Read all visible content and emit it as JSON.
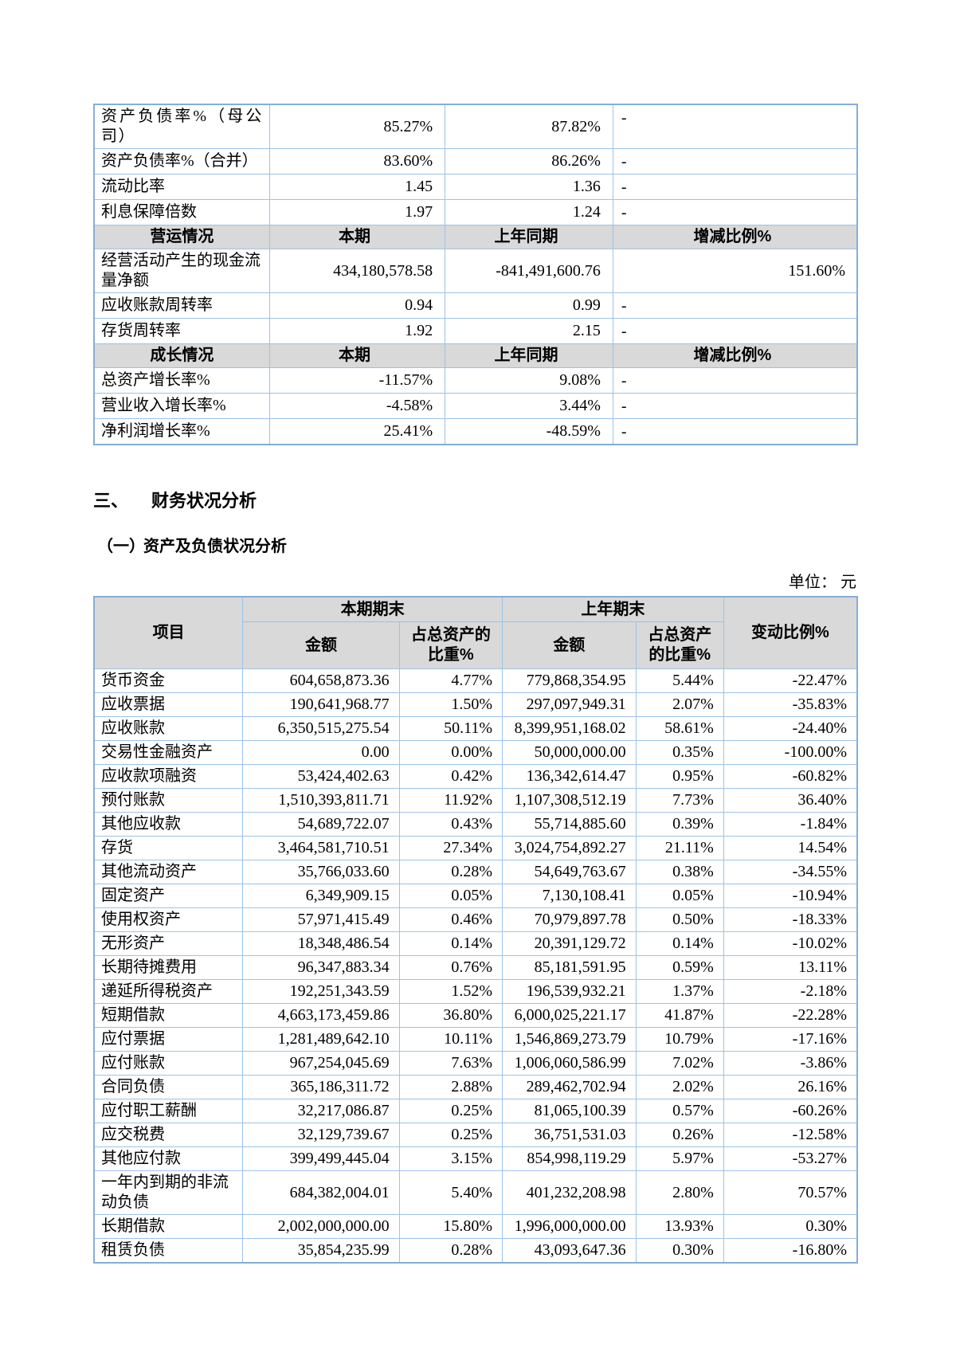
{
  "headings": {
    "section_number": "三、",
    "section_title": "财务状况分析",
    "subsection_number": "（一）",
    "subsection_title": "资产及负债状况分析",
    "unit_label": "单位： 元"
  },
  "ratio_table": {
    "rows": [
      {
        "kind": "data",
        "label": "资产负债率%（母公司）",
        "current": "85.27%",
        "prior": "87.82%",
        "change": "-",
        "tall": true,
        "justify": true
      },
      {
        "kind": "data",
        "label": "资产负债率%（合并）",
        "current": "83.60%",
        "prior": "86.26%",
        "change": "-"
      },
      {
        "kind": "data",
        "label": "流动比率",
        "current": "1.45",
        "prior": "1.36",
        "change": "-"
      },
      {
        "kind": "data",
        "label": "利息保障倍数",
        "current": "1.97",
        "prior": "1.24",
        "change": "-"
      },
      {
        "kind": "header",
        "label": "营运情况",
        "current": "本期",
        "prior": "上年同期",
        "change": "增减比例%"
      },
      {
        "kind": "data",
        "label": "经营活动产生的现金流量净额",
        "current": "434,180,578.58",
        "prior": "-841,491,600.76",
        "change": "151.60%",
        "tall": true
      },
      {
        "kind": "data",
        "label": "应收账款周转率",
        "current": "0.94",
        "prior": "0.99",
        "change": "-"
      },
      {
        "kind": "data",
        "label": "存货周转率",
        "current": "1.92",
        "prior": "2.15",
        "change": "-"
      },
      {
        "kind": "header",
        "label": "成长情况",
        "current": "本期",
        "prior": "上年同期",
        "change": "增减比例%"
      },
      {
        "kind": "data",
        "label": "总资产增长率%",
        "current": "-11.57%",
        "prior": "9.08%",
        "change": "-"
      },
      {
        "kind": "data",
        "label": "营业收入增长率%",
        "current": "-4.58%",
        "prior": "3.44%",
        "change": "-"
      },
      {
        "kind": "data",
        "label": "净利润增长率%",
        "current": "25.41%",
        "prior": "-48.59%",
        "change": "-"
      }
    ]
  },
  "balance_table": {
    "header": {
      "item": "项目",
      "current_group": "本期期末",
      "prior_group": "上年期末",
      "amount_current": "金额",
      "pct_current": "占总资产的比重%",
      "amount_prior": "金额",
      "pct_prior": "占总资产的比重%",
      "change": "变动比例%"
    },
    "rows": [
      {
        "label": "货币资金",
        "amount_current": "604,658,873.36",
        "pct_current": "4.77%",
        "amount_prior": "779,868,354.95",
        "pct_prior": "5.44%",
        "change": "-22.47%"
      },
      {
        "label": "应收票据",
        "amount_current": "190,641,968.77",
        "pct_current": "1.50%",
        "amount_prior": "297,097,949.31",
        "pct_prior": "2.07%",
        "change": "-35.83%",
        "tall": "xl",
        "label_top": true
      },
      {
        "label": "应收账款",
        "amount_current": "6,350,515,275.54",
        "pct_current": "50.11%",
        "amount_prior": "8,399,951,168.02",
        "pct_prior": "58.61%",
        "change": "-24.40%"
      },
      {
        "label": "交易性金融资产",
        "amount_current": "0.00",
        "pct_current": "0.00%",
        "amount_prior": "50,000,000.00",
        "pct_prior": "0.35%",
        "change": "-100.00%"
      },
      {
        "label": "应收款项融资",
        "amount_current": "53,424,402.63",
        "pct_current": "0.42%",
        "amount_prior": "136,342,614.47",
        "pct_prior": "0.95%",
        "change": "-60.82%"
      },
      {
        "label": "预付账款",
        "amount_current": "1,510,393,811.71",
        "pct_current": "11.92%",
        "amount_prior": "1,107,308,512.19",
        "pct_prior": "7.73%",
        "change": "36.40%"
      },
      {
        "label": "其他应收款",
        "amount_current": "54,689,722.07",
        "pct_current": "0.43%",
        "amount_prior": "55,714,885.60",
        "pct_prior": "0.39%",
        "change": "-1.84%"
      },
      {
        "label": "存货",
        "amount_current": "3,464,581,710.51",
        "pct_current": "27.34%",
        "amount_prior": "3,024,754,892.27",
        "pct_prior": "21.11%",
        "change": "14.54%"
      },
      {
        "label": "其他流动资产",
        "amount_current": "35,766,033.60",
        "pct_current": "0.28%",
        "amount_prior": "54,649,763.67",
        "pct_prior": "0.38%",
        "change": "-34.55%"
      },
      {
        "label": "固定资产",
        "amount_current": "6,349,909.15",
        "pct_current": "0.05%",
        "amount_prior": "7,130,108.41",
        "pct_prior": "0.05%",
        "change": "-10.94%"
      },
      {
        "label": "使用权资产",
        "amount_current": "57,971,415.49",
        "pct_current": "0.46%",
        "amount_prior": "70,979,897.78",
        "pct_prior": "0.50%",
        "change": "-18.33%"
      },
      {
        "label": "无形资产",
        "amount_current": "18,348,486.54",
        "pct_current": "0.14%",
        "amount_prior": "20,391,129.72",
        "pct_prior": "0.14%",
        "change": "-10.02%"
      },
      {
        "label": "长期待摊费用",
        "amount_current": "96,347,883.34",
        "pct_current": "0.76%",
        "amount_prior": "85,181,591.95",
        "pct_prior": "0.59%",
        "change": "13.11%"
      },
      {
        "label": "递延所得税资产",
        "amount_current": "192,251,343.59",
        "pct_current": "1.52%",
        "amount_prior": "196,539,932.21",
        "pct_prior": "1.37%",
        "change": "-2.18%"
      },
      {
        "label": "短期借款",
        "amount_current": "4,663,173,459.86",
        "pct_current": "36.80%",
        "amount_prior": "6,000,025,221.17",
        "pct_prior": "41.87%",
        "change": "-22.28%"
      },
      {
        "label": "应付票据",
        "amount_current": "1,281,489,642.10",
        "pct_current": "10.11%",
        "amount_prior": "1,546,869,273.79",
        "pct_prior": "10.79%",
        "change": "-17.16%"
      },
      {
        "label": "应付账款",
        "amount_current": "967,254,045.69",
        "pct_current": "7.63%",
        "amount_prior": "1,006,060,586.99",
        "pct_prior": "7.02%",
        "change": "-3.86%"
      },
      {
        "label": "合同负债",
        "amount_current": "365,186,311.72",
        "pct_current": "2.88%",
        "amount_prior": "289,462,702.94",
        "pct_prior": "2.02%",
        "change": "26.16%"
      },
      {
        "label": "应付职工薪酬",
        "amount_current": "32,217,086.87",
        "pct_current": "0.25%",
        "amount_prior": "81,065,100.39",
        "pct_prior": "0.57%",
        "change": "-60.26%"
      },
      {
        "label": "应交税费",
        "amount_current": "32,129,739.67",
        "pct_current": "0.25%",
        "amount_prior": "36,751,531.03",
        "pct_prior": "0.26%",
        "change": "-12.58%"
      },
      {
        "label": "其他应付款",
        "amount_current": "399,499,445.04",
        "pct_current": "3.15%",
        "amount_prior": "854,998,119.29",
        "pct_prior": "5.97%",
        "change": "-53.27%"
      },
      {
        "label": "一年内到期的非流动负债",
        "amount_current": "684,382,004.01",
        "pct_current": "5.40%",
        "amount_prior": "401,232,208.98",
        "pct_prior": "2.80%",
        "change": "70.57%"
      },
      {
        "label": "长期借款",
        "amount_current": "2,002,000,000.00",
        "pct_current": "15.80%",
        "amount_prior": "1,996,000,000.00",
        "pct_prior": "13.93%",
        "change": "0.30%"
      },
      {
        "label": "租赁负债",
        "amount_current": "35,854,235.99",
        "pct_current": "0.28%",
        "amount_prior": "43,093,647.36",
        "pct_prior": "0.30%",
        "change": "-16.80%"
      }
    ]
  }
}
